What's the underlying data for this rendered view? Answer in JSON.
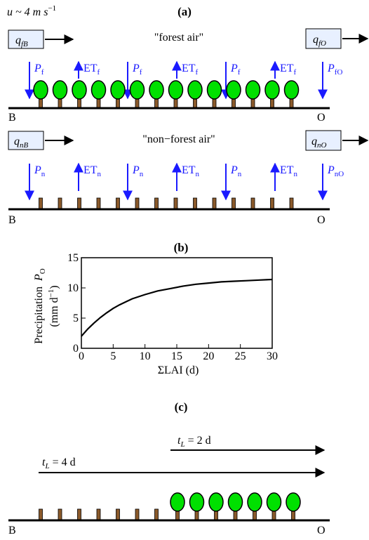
{
  "panel_a": {
    "label": "(a)",
    "speed": "u ~ 4 m s",
    "speed_exp": "−1",
    "forest": {
      "inflow_q": "q",
      "inflow_sub": "fB",
      "outflow_q": "q",
      "outflow_sub": "fO",
      "air_label": "\"forest air\"",
      "fluxes": [
        {
          "main": "P",
          "sub": "f",
          "dir": "down"
        },
        {
          "main": "ET",
          "sub": "f",
          "dir": "up"
        },
        {
          "main": "P",
          "sub": "f",
          "dir": "down"
        },
        {
          "main": "ET",
          "sub": "f",
          "dir": "up"
        },
        {
          "main": "P",
          "sub": "f",
          "dir": "down"
        },
        {
          "main": "ET",
          "sub": "f",
          "dir": "up"
        },
        {
          "main": "P",
          "sub": "fO",
          "dir": "down"
        }
      ],
      "left_point": "B",
      "right_point": "O"
    },
    "nonforest": {
      "inflow_q": "q",
      "inflow_sub": "nB",
      "outflow_q": "q",
      "outflow_sub": "nO",
      "air_label": "\"non−forest air\"",
      "fluxes": [
        {
          "main": "P",
          "sub": "n",
          "dir": "down"
        },
        {
          "main": "ET",
          "sub": "n",
          "dir": "up"
        },
        {
          "main": "P",
          "sub": "n",
          "dir": "down"
        },
        {
          "main": "ET",
          "sub": "n",
          "dir": "up"
        },
        {
          "main": "P",
          "sub": "n",
          "dir": "down"
        },
        {
          "main": "ET",
          "sub": "n",
          "dir": "up"
        },
        {
          "main": "P",
          "sub": "nO",
          "dir": "down"
        }
      ],
      "left_point": "B",
      "right_point": "O"
    }
  },
  "panel_b": {
    "label": "(b)",
    "ylabel_line1": "Precipitation",
    "ylabel_sym": "P",
    "ylabel_sub": "O",
    "ylabel_line2": "(mm d",
    "ylabel_exp": "−1",
    "ylabel_close": ")",
    "xlabel": "ΣLAI (d)"
  },
  "chart_data": {
    "type": "line",
    "x": [
      0,
      1,
      2,
      3,
      4,
      5,
      6,
      7,
      8,
      10,
      12,
      14,
      16,
      18,
      20,
      22,
      24,
      26,
      28,
      30
    ],
    "series": [
      {
        "values": [
          2.0,
          3.2,
          4.2,
          5.1,
          5.9,
          6.6,
          7.2,
          7.7,
          8.2,
          8.9,
          9.5,
          9.9,
          10.3,
          10.6,
          10.8,
          11.0,
          11.1,
          11.2,
          11.3,
          11.4
        ]
      }
    ],
    "xlim": [
      0,
      30
    ],
    "ylim": [
      0,
      15
    ],
    "xticks": [
      "0",
      "5",
      "10",
      "15",
      "20",
      "25",
      "30"
    ],
    "yticks": [
      "0",
      "5",
      "10",
      "15"
    ]
  },
  "panel_c": {
    "label": "(c)",
    "arrow1_sym": "t",
    "arrow1_sub": "L",
    "arrow1_val": " = 2 d",
    "arrow2_sym": "t",
    "arrow2_sub": "L",
    "arrow2_val": " = 4 d",
    "left_point": "B",
    "right_point": "O"
  },
  "colors": {
    "tree_crown": "#00e000",
    "trunk": "#8b5a2b",
    "flux": "#1a1aff",
    "box_fill": "#e8f0ff"
  }
}
